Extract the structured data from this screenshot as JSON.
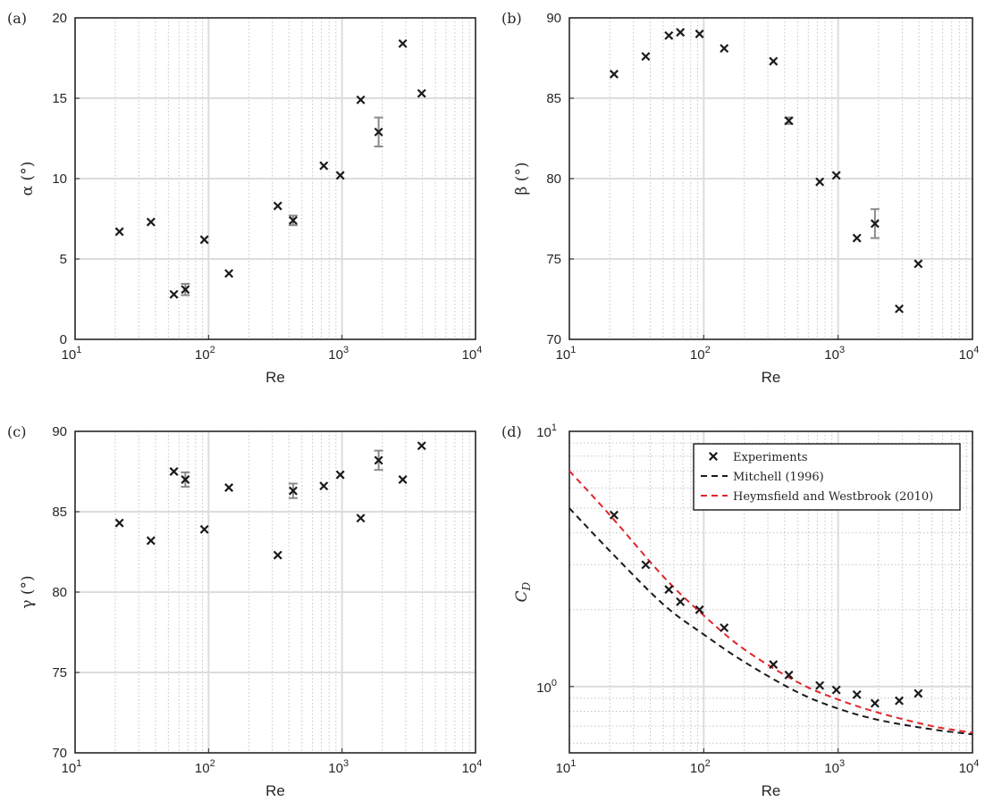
{
  "chart_data": [
    {
      "panel": "(a)",
      "type": "scatter",
      "xscale": "log",
      "yscale": "linear",
      "xlabel": "Re",
      "ylabel": "α (°)",
      "xlim": [
        10,
        10000
      ],
      "ylim": [
        0,
        20
      ],
      "xticks": [
        "10¹",
        "10²",
        "10³",
        "10⁴"
      ],
      "yticks": [
        "0",
        "5",
        "10",
        "15",
        "20"
      ],
      "grid": true,
      "marker": "x",
      "points": [
        {
          "x": 21.5,
          "y": 6.7
        },
        {
          "x": 37,
          "y": 7.3
        },
        {
          "x": 55,
          "y": 2.8
        },
        {
          "x": 67,
          "y": 3.1,
          "err": 0.35
        },
        {
          "x": 93,
          "y": 6.2
        },
        {
          "x": 142,
          "y": 4.1
        },
        {
          "x": 330,
          "y": 8.3
        },
        {
          "x": 430,
          "y": 7.4,
          "err": 0.3
        },
        {
          "x": 730,
          "y": 10.8
        },
        {
          "x": 970,
          "y": 10.2
        },
        {
          "x": 1380,
          "y": 14.9
        },
        {
          "x": 1880,
          "y": 12.9,
          "err": 0.9
        },
        {
          "x": 2850,
          "y": 18.4
        },
        {
          "x": 3950,
          "y": 15.3
        }
      ]
    },
    {
      "panel": "(b)",
      "type": "scatter",
      "xscale": "log",
      "yscale": "linear",
      "xlabel": "Re",
      "ylabel": "β (°)",
      "xlim": [
        10,
        10000
      ],
      "ylim": [
        70,
        90
      ],
      "xticks": [
        "10¹",
        "10²",
        "10³",
        "10⁴"
      ],
      "yticks": [
        "70",
        "75",
        "80",
        "85",
        "90"
      ],
      "grid": true,
      "marker": "x",
      "points": [
        {
          "x": 21.5,
          "y": 86.5
        },
        {
          "x": 37,
          "y": 87.6
        },
        {
          "x": 55,
          "y": 88.9
        },
        {
          "x": 67,
          "y": 89.1
        },
        {
          "x": 93,
          "y": 89.0
        },
        {
          "x": 142,
          "y": 88.1
        },
        {
          "x": 330,
          "y": 87.3
        },
        {
          "x": 430,
          "y": 83.6,
          "err": 0.2
        },
        {
          "x": 730,
          "y": 79.8
        },
        {
          "x": 970,
          "y": 80.2
        },
        {
          "x": 1380,
          "y": 76.3
        },
        {
          "x": 1880,
          "y": 77.2,
          "err": 0.9
        },
        {
          "x": 2850,
          "y": 71.9
        },
        {
          "x": 3950,
          "y": 74.7
        }
      ]
    },
    {
      "panel": "(c)",
      "type": "scatter",
      "xscale": "log",
      "yscale": "linear",
      "xlabel": "Re",
      "ylabel": "γ (°)",
      "xlim": [
        10,
        10000
      ],
      "ylim": [
        70,
        90
      ],
      "xticks": [
        "10¹",
        "10²",
        "10³",
        "10⁴"
      ],
      "yticks": [
        "70",
        "75",
        "80",
        "85",
        "90"
      ],
      "grid": true,
      "marker": "x",
      "points": [
        {
          "x": 21.5,
          "y": 84.3
        },
        {
          "x": 37,
          "y": 83.2
        },
        {
          "x": 55,
          "y": 87.5
        },
        {
          "x": 67,
          "y": 87.0,
          "err": 0.45
        },
        {
          "x": 93,
          "y": 83.9
        },
        {
          "x": 142,
          "y": 86.5
        },
        {
          "x": 330,
          "y": 82.3
        },
        {
          "x": 430,
          "y": 86.3,
          "err": 0.45
        },
        {
          "x": 730,
          "y": 86.6
        },
        {
          "x": 970,
          "y": 87.3
        },
        {
          "x": 1380,
          "y": 84.6
        },
        {
          "x": 1880,
          "y": 88.2,
          "err": 0.6
        },
        {
          "x": 2850,
          "y": 87.0
        },
        {
          "x": 3950,
          "y": 89.1
        }
      ]
    },
    {
      "panel": "(d)",
      "type": "line",
      "xscale": "log",
      "yscale": "log",
      "xlabel": "Re",
      "ylabel": "C_D",
      "xlim": [
        10,
        10000
      ],
      "ylim": [
        0.55,
        10
      ],
      "xticks": [
        "10¹",
        "10²",
        "10³",
        "10⁴"
      ],
      "yticks": [
        "10⁰",
        "10¹"
      ],
      "grid": true,
      "legend_position": "top-right",
      "series": [
        {
          "name": "Experiments",
          "kind": "scatter",
          "marker": "x",
          "color": "#1a1a1a",
          "points": [
            {
              "x": 21.5,
              "y": 4.7
            },
            {
              "x": 37,
              "y": 3.0
            },
            {
              "x": 55,
              "y": 2.4
            },
            {
              "x": 67,
              "y": 2.15
            },
            {
              "x": 93,
              "y": 2.0
            },
            {
              "x": 142,
              "y": 1.7
            },
            {
              "x": 330,
              "y": 1.22
            },
            {
              "x": 430,
              "y": 1.11
            },
            {
              "x": 730,
              "y": 1.01
            },
            {
              "x": 970,
              "y": 0.97
            },
            {
              "x": 1380,
              "y": 0.93
            },
            {
              "x": 1880,
              "y": 0.86
            },
            {
              "x": 2850,
              "y": 0.88
            },
            {
              "x": 3950,
              "y": 0.94
            }
          ]
        },
        {
          "name": "Mitchell (1996)",
          "kind": "line",
          "dash": "dashed",
          "color": "#1a1a1a",
          "points": [
            {
              "x": 10,
              "y": 5.0
            },
            {
              "x": 20,
              "y": 3.4
            },
            {
              "x": 50,
              "y": 2.1
            },
            {
              "x": 100,
              "y": 1.6
            },
            {
              "x": 200,
              "y": 1.25
            },
            {
              "x": 500,
              "y": 0.95
            },
            {
              "x": 1000,
              "y": 0.82
            },
            {
              "x": 2000,
              "y": 0.74
            },
            {
              "x": 5000,
              "y": 0.68
            },
            {
              "x": 10000,
              "y": 0.65
            }
          ]
        },
        {
          "name": "Heymsfield and Westbrook (2010)",
          "kind": "line",
          "dash": "dashed",
          "color": "#e0262b",
          "points": [
            {
              "x": 10,
              "y": 7.0
            },
            {
              "x": 20,
              "y": 4.7
            },
            {
              "x": 50,
              "y": 2.7
            },
            {
              "x": 100,
              "y": 1.9
            },
            {
              "x": 200,
              "y": 1.4
            },
            {
              "x": 500,
              "y": 1.04
            },
            {
              "x": 1000,
              "y": 0.89
            },
            {
              "x": 2000,
              "y": 0.79
            },
            {
              "x": 5000,
              "y": 0.7
            },
            {
              "x": 10000,
              "y": 0.66
            }
          ]
        }
      ]
    }
  ],
  "error_bar_color": "#8a8a8a"
}
